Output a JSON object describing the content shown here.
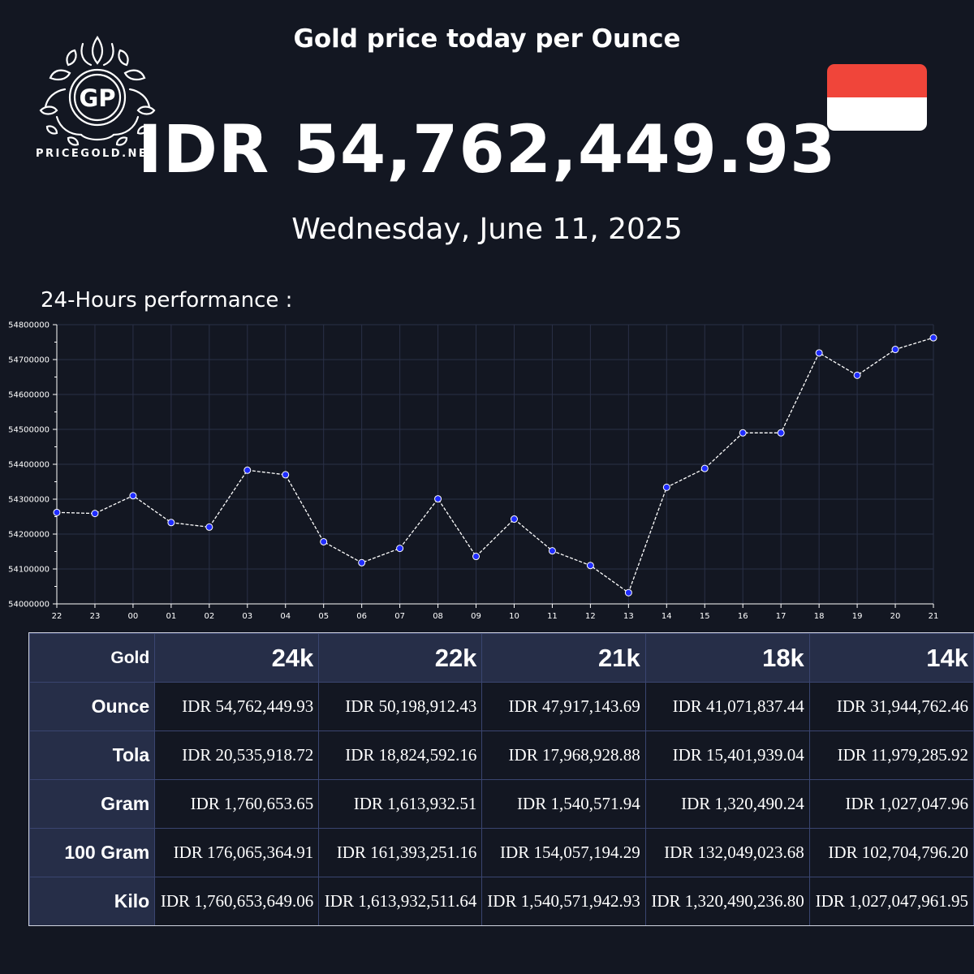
{
  "header": {
    "logo_text": "PRICEGOLD.NET",
    "logo_monogram": "GP",
    "title": "Gold price today per Ounce",
    "price": "IDR 54,762,449.93",
    "date": "Wednesday, June 11, 2025",
    "flag": {
      "name": "indonesia-flag",
      "top_color": "#f0453a",
      "bottom_color": "#ffffff"
    }
  },
  "performance_label": "24-Hours performance :",
  "chart_data": {
    "type": "line",
    "title": "",
    "xlabel": "",
    "ylabel": "",
    "x": [
      "22",
      "23",
      "00",
      "01",
      "02",
      "03",
      "04",
      "05",
      "06",
      "07",
      "08",
      "09",
      "10",
      "11",
      "12",
      "13",
      "14",
      "15",
      "16",
      "17",
      "18",
      "19",
      "20",
      "21"
    ],
    "values": [
      54262000,
      54259000,
      54310000,
      54233000,
      54220000,
      54383000,
      54370000,
      54178000,
      54118000,
      54159000,
      54301000,
      54136000,
      54243000,
      54152000,
      54110000,
      54032000,
      54334000,
      54388000,
      54490000,
      54490000,
      54719000,
      54655000,
      54729000,
      54762449.93
    ],
    "ylim": [
      54000000,
      54800000
    ],
    "yticks": [
      "54000000",
      "54100000",
      "54200000",
      "54300000",
      "54400000",
      "54500000",
      "54600000",
      "54700000",
      "54800000"
    ],
    "grid": true,
    "line_color": "#ffffff",
    "line_style": "dashed",
    "marker_color": "#1f2cff",
    "grid_color": "#2a3047"
  },
  "table": {
    "corner": "Gold",
    "columns": [
      "24k",
      "22k",
      "21k",
      "18k",
      "14k"
    ],
    "rows": [
      {
        "label": "Ounce",
        "values": [
          "IDR 54,762,449.93",
          "IDR 50,198,912.43",
          "IDR 47,917,143.69",
          "IDR 41,071,837.44",
          "IDR 31,944,762.46"
        ]
      },
      {
        "label": "Tola",
        "values": [
          "IDR 20,535,918.72",
          "IDR 18,824,592.16",
          "IDR 17,968,928.88",
          "IDR 15,401,939.04",
          "IDR 11,979,285.92"
        ]
      },
      {
        "label": "Gram",
        "values": [
          "IDR 1,760,653.65",
          "IDR 1,613,932.51",
          "IDR 1,540,571.94",
          "IDR 1,320,490.24",
          "IDR 1,027,047.96"
        ]
      },
      {
        "label": "100 Gram",
        "values": [
          "IDR 176,065,364.91",
          "IDR 161,393,251.16",
          "IDR 154,057,194.29",
          "IDR 132,049,023.68",
          "IDR 102,704,796.20"
        ]
      },
      {
        "label": "Kilo",
        "values": [
          "IDR 1,760,653,649.06",
          "IDR 1,613,932,511.64",
          "IDR 1,540,571,942.93",
          "IDR 1,320,490,236.80",
          "IDR 1,027,047,961.95"
        ]
      }
    ]
  }
}
